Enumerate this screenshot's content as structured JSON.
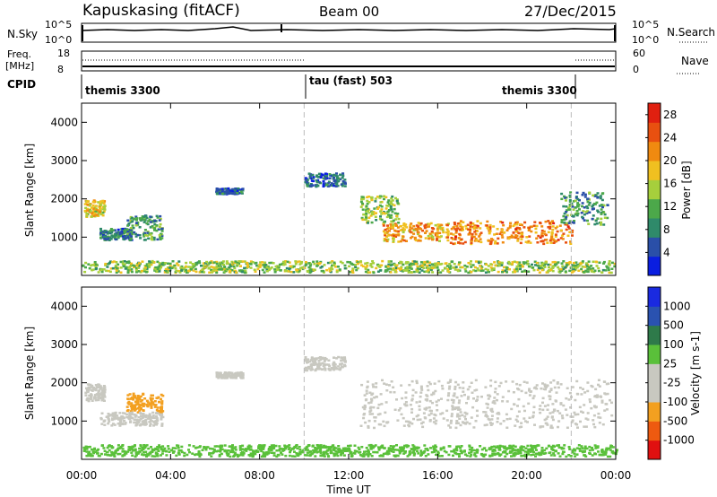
{
  "header": {
    "station": "Kapuskasing (fitACF)",
    "beam": "Beam 00",
    "date": "27/Dec/2015"
  },
  "panels": {
    "nsky": {
      "label": "N.Sky",
      "ticks": [
        "10^5",
        "10^0"
      ],
      "right_ticks": [
        "10^5",
        "10^0"
      ],
      "legend": "N.Search"
    },
    "freq": {
      "label_line1": "Freq.",
      "label_line2": "[MHz]",
      "ticks": [
        "18",
        "8"
      ],
      "right_ticks": [
        "60",
        "0"
      ],
      "legend": "Nave"
    },
    "cpid": {
      "label": "CPID",
      "segments": [
        "themis 3300",
        "tau (fast) 503",
        "themis 3300"
      ]
    }
  },
  "x_axis": {
    "label": "Time UT",
    "ticks": [
      "00:00",
      "04:00",
      "08:00",
      "12:00",
      "16:00",
      "20:00",
      "00:00"
    ]
  },
  "colors": {
    "power": [
      "#0a1ee0",
      "#2a4fa8",
      "#2f8a6a",
      "#4ca84a",
      "#a6cf3c",
      "#f0c020",
      "#f08a10",
      "#e85010",
      "#e02010"
    ],
    "velocity": [
      "#e01010",
      "#ee5a10",
      "#f3a020",
      "#c8c8c0",
      "#c8c8c0",
      "#5ac03a",
      "#2e7a4a",
      "#2a52b0",
      "#1a2ae0"
    ]
  },
  "chart_data": [
    {
      "type": "heatmap",
      "title": "Power",
      "ylabel": "Slant Range [km]",
      "xlabel": "Time UT",
      "xlim": [
        0,
        24
      ],
      "ylim": [
        0,
        4500
      ],
      "yticks": [
        1000,
        2000,
        3000,
        4000
      ],
      "colorbar": {
        "label": "Power [dB]",
        "ticks": [
          4,
          8,
          12,
          16,
          20,
          24,
          28
        ],
        "range": [
          0,
          30
        ]
      },
      "regions": [
        {
          "t": [
            0.1,
            1.0
          ],
          "r": [
            1550,
            2000
          ],
          "value": 18
        },
        {
          "t": [
            0.8,
            2.2
          ],
          "r": [
            950,
            1250
          ],
          "value": 8
        },
        {
          "t": [
            2.0,
            3.6
          ],
          "r": [
            950,
            1600
          ],
          "value": 10
        },
        {
          "t": [
            6.0,
            7.2
          ],
          "r": [
            2150,
            2300
          ],
          "value": 6
        },
        {
          "t": [
            10.0,
            11.8
          ],
          "r": [
            2350,
            2700
          ],
          "value": 6
        },
        {
          "t": [
            12.5,
            14.2
          ],
          "r": [
            1400,
            2100
          ],
          "value": 14
        },
        {
          "t": [
            13.5,
            16.5
          ],
          "r": [
            900,
            1400
          ],
          "value": 20
        },
        {
          "t": [
            16.5,
            22.0
          ],
          "r": [
            850,
            1450
          ],
          "value": 22
        },
        {
          "t": [
            21.5,
            23.6
          ],
          "r": [
            1350,
            2200
          ],
          "value": 10
        },
        {
          "t": [
            0.0,
            24.0
          ],
          "r": [
            100,
            400
          ],
          "value": 14
        }
      ]
    },
    {
      "type": "heatmap",
      "title": "Velocity",
      "ylabel": "Slant Range [km]",
      "xlabel": "Time UT",
      "xlim": [
        0,
        24
      ],
      "ylim": [
        0,
        4500
      ],
      "yticks": [
        1000,
        2000,
        3000,
        4000
      ],
      "colorbar": {
        "label": "Velocity [m s-1]",
        "ticks": [
          -1000,
          -500,
          -100,
          -25,
          25,
          100,
          500,
          1000
        ]
      },
      "regions": [
        {
          "t": [
            0.1,
            1.0
          ],
          "r": [
            1550,
            2000
          ],
          "value": 0
        },
        {
          "t": [
            2.0,
            3.6
          ],
          "r": [
            1250,
            1750
          ],
          "value": -300
        },
        {
          "t": [
            0.8,
            3.6
          ],
          "r": [
            900,
            1250
          ],
          "value": 0
        },
        {
          "t": [
            6.0,
            7.2
          ],
          "r": [
            2150,
            2300
          ],
          "value": 0
        },
        {
          "t": [
            10.0,
            11.8
          ],
          "r": [
            2350,
            2700
          ],
          "value": 0
        },
        {
          "t": [
            12.5,
            23.8
          ],
          "r": [
            850,
            2100
          ],
          "value": 0
        },
        {
          "t": [
            0.0,
            24.0
          ],
          "r": [
            100,
            400
          ],
          "value": 80
        }
      ]
    }
  ]
}
